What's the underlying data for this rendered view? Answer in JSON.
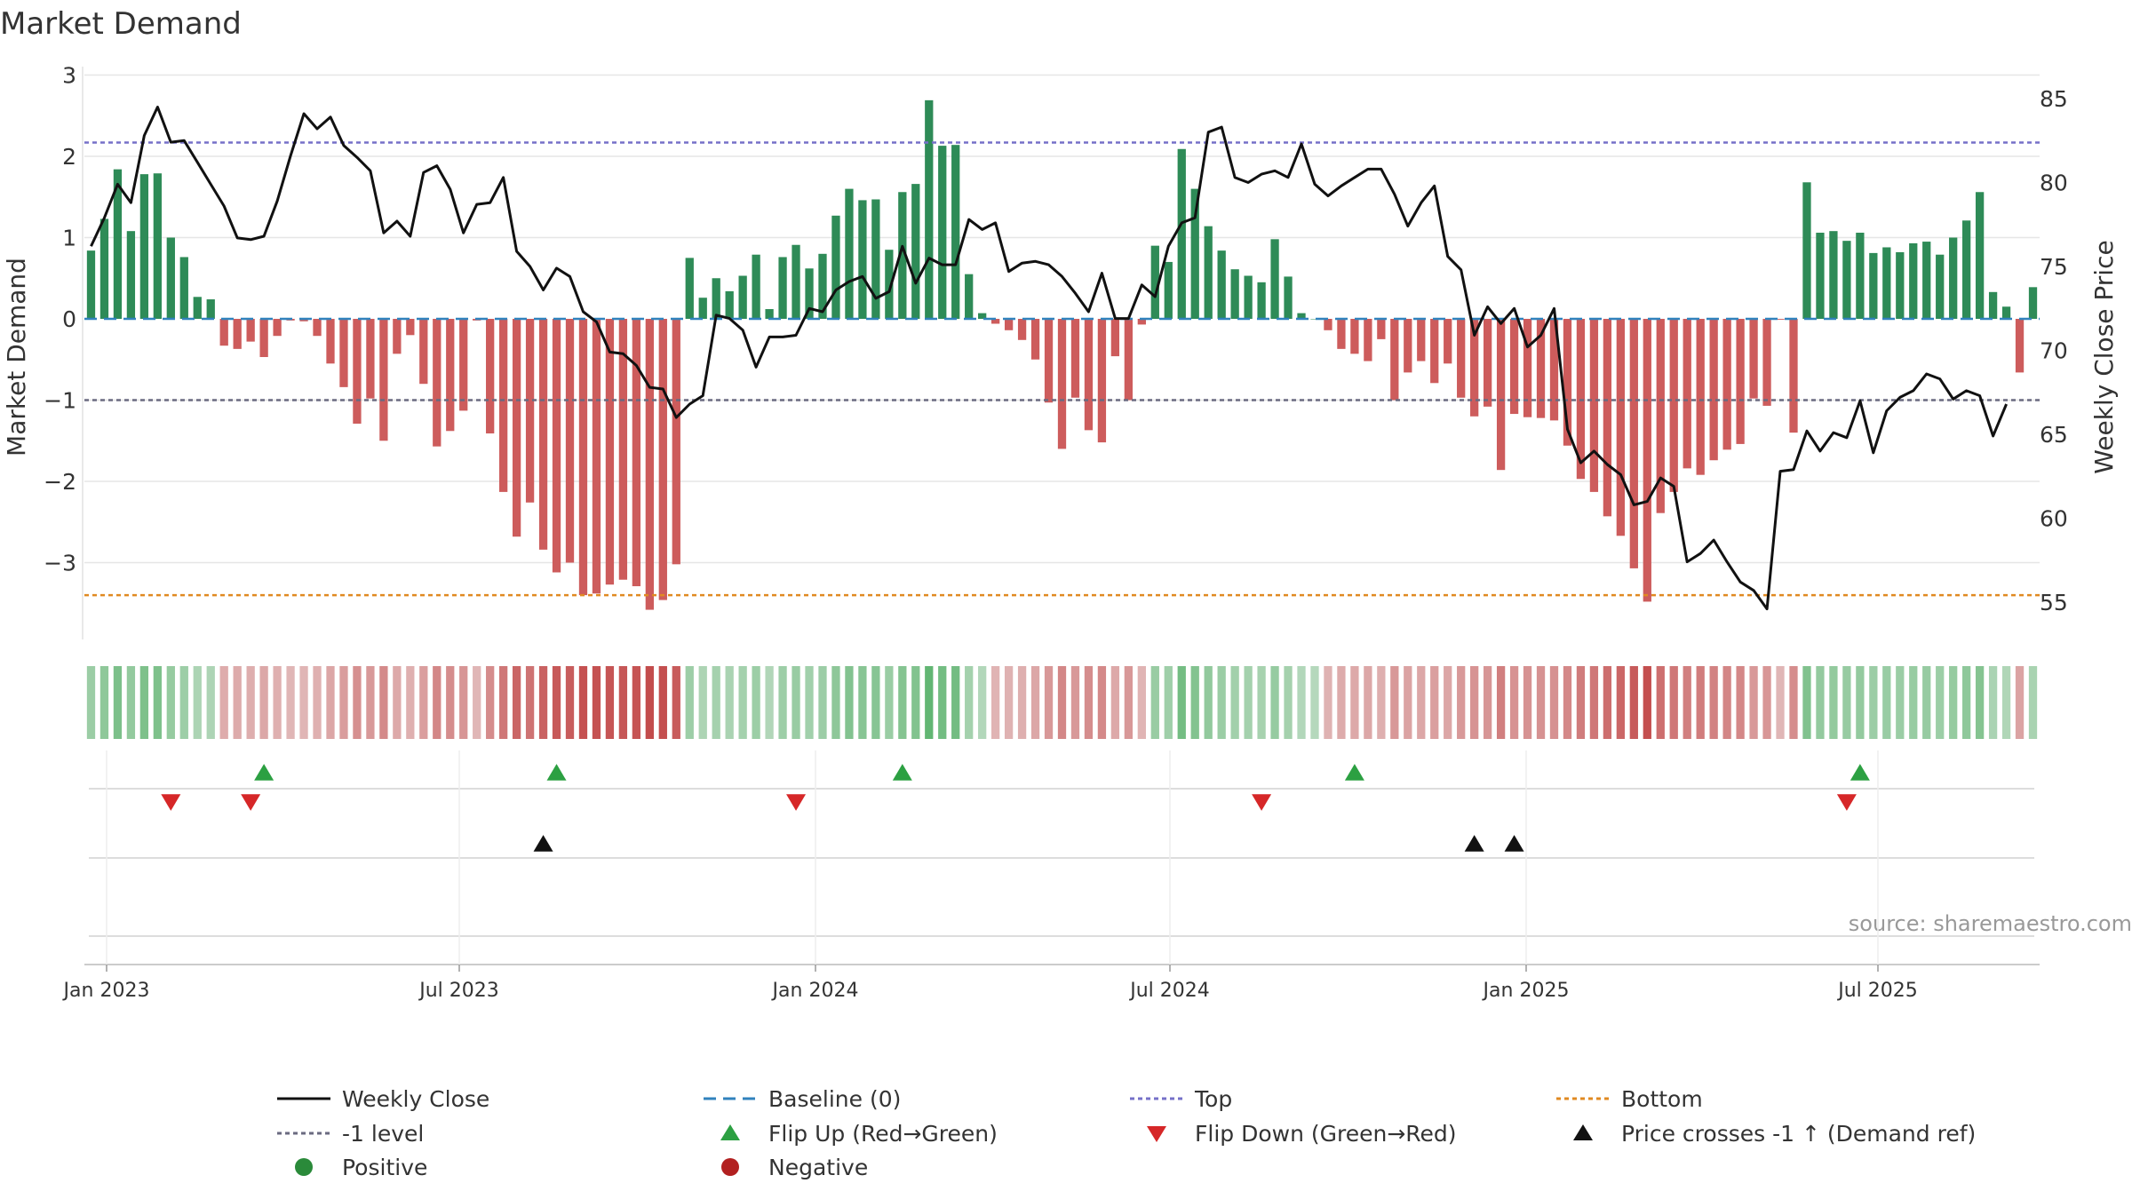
{
  "chart_data": {
    "type": "bar",
    "title": "Market Demand",
    "ylabel": "Market Demand",
    "y2label": "Weekly Close Price",
    "ylim": [
      -3.9,
      3.0
    ],
    "y2lim": [
      52.5,
      87.0
    ],
    "yticks": [
      "3",
      "2",
      "1",
      "0",
      "−1",
      "−2",
      "−3"
    ],
    "y2ticks": [
      "85",
      "80",
      "75",
      "70",
      "65",
      "60",
      "55"
    ],
    "xticks": [
      "Jan 2023",
      "Jul 2023",
      "Jan 2024",
      "Jul 2024",
      "Jan 2025",
      "Jul 2025"
    ],
    "source": "source: sharemaestro.com",
    "reference_lines": {
      "top": 2.17,
      "minus_one": -1.0,
      "bottom": -3.4,
      "baseline": 0
    },
    "series": [
      {
        "name": "Market Demand",
        "values": [
          0.84,
          1.23,
          1.84,
          1.08,
          1.78,
          1.79,
          1.0,
          0.76,
          0.27,
          0.24,
          -0.33,
          -0.37,
          -0.28,
          -0.47,
          -0.21,
          -0.02,
          -0.03,
          -0.21,
          -0.55,
          -0.84,
          -1.29,
          -0.98,
          -1.5,
          -0.43,
          -0.2,
          -0.8,
          -1.57,
          -1.38,
          -1.13,
          -0.02,
          -1.41,
          -2.13,
          -2.68,
          -2.26,
          -2.84,
          -3.12,
          -3.0,
          -3.4,
          -3.38,
          -3.27,
          -3.21,
          -3.29,
          -3.58,
          -3.46,
          -3.02,
          0.75,
          0.26,
          0.5,
          0.34,
          0.53,
          0.79,
          0.12,
          0.76,
          0.91,
          0.62,
          0.8,
          1.27,
          1.6,
          1.46,
          1.47,
          0.85,
          1.56,
          1.66,
          2.69,
          2.13,
          2.14,
          0.55,
          0.07,
          -0.06,
          -0.14,
          -0.26,
          -0.5,
          -1.03,
          -1.6,
          -0.97,
          -1.37,
          -1.52,
          -0.46,
          -1.0,
          -0.07,
          0.9,
          0.7,
          2.09,
          1.6,
          1.14,
          0.84,
          0.61,
          0.53,
          0.45,
          0.98,
          0.52,
          0.07,
          0.0,
          -0.14,
          -0.37,
          -0.43,
          -0.52,
          -0.25,
          -1.0,
          -0.66,
          -0.52,
          -0.79,
          -0.55,
          -0.97,
          -1.2,
          -1.08,
          -1.86,
          -1.17,
          -1.21,
          -1.22,
          -1.25,
          -1.56,
          -1.97,
          -2.13,
          -2.43,
          -2.67,
          -3.07,
          -3.48,
          -2.39,
          -2.13,
          -1.84,
          -1.92,
          -1.74,
          -1.61,
          -1.54,
          -0.98,
          -1.07,
          -0.01,
          -1.4,
          1.68,
          1.06,
          1.08,
          0.96,
          1.06,
          0.81,
          0.88,
          0.82,
          0.93,
          0.95,
          0.79,
          1.0,
          1.21,
          1.56,
          0.33,
          0.15,
          -0.66,
          0.39
        ]
      },
      {
        "name": "Weekly Close",
        "values": [
          76.2,
          77.9,
          79.9,
          78.8,
          82.8,
          84.5,
          82.4,
          82.5,
          81.2,
          79.9,
          78.6,
          76.7,
          76.6,
          76.8,
          78.9,
          81.6,
          84.1,
          83.2,
          83.9,
          82.2,
          81.5,
          80.7,
          77.0,
          77.7,
          76.8,
          80.6,
          81.0,
          79.6,
          77.0,
          78.7,
          78.8,
          80.3,
          75.9,
          75.0,
          73.6,
          74.9,
          74.4,
          72.3,
          71.7,
          69.9,
          69.8,
          69.1,
          67.8,
          67.7,
          66.0,
          66.8,
          67.3,
          72.1,
          71.9,
          71.2,
          69.0,
          70.8,
          70.8,
          70.9,
          72.5,
          72.3,
          73.6,
          74.1,
          74.4,
          73.1,
          73.5,
          76.2,
          74.0,
          75.5,
          75.1,
          75.1,
          77.8,
          77.2,
          77.6,
          74.7,
          75.2,
          75.3,
          75.1,
          74.4,
          73.4,
          72.3,
          74.6,
          71.9,
          71.9,
          73.9,
          73.2,
          76.2,
          77.6,
          77.9,
          83.0,
          83.3,
          80.3,
          80.0,
          80.5,
          80.7,
          80.3,
          82.3,
          79.9,
          79.2,
          79.8,
          80.3,
          80.8,
          80.8,
          79.3,
          77.4,
          78.8,
          79.8,
          75.6,
          74.8,
          70.9,
          72.6,
          71.6,
          72.5,
          70.2,
          70.9,
          72.5,
          65.3,
          63.3,
          64.0,
          63.2,
          62.6,
          60.8,
          61.0,
          62.4,
          61.9,
          57.4,
          57.9,
          58.7,
          57.4,
          56.2,
          55.7,
          54.6,
          62.8,
          62.9,
          65.2,
          64.0,
          65.1,
          64.8,
          67.0,
          63.9,
          66.4,
          67.2,
          67.6,
          68.6,
          68.3,
          67.1,
          67.6,
          67.3,
          64.9,
          66.8
        ]
      }
    ],
    "flip_up_weeks": [
      13,
      35,
      61,
      95,
      133
    ],
    "flip_down_weeks": [
      6,
      12,
      53,
      88,
      132
    ],
    "price_cross_weeks": [
      34,
      104,
      107
    ],
    "legend": [
      {
        "label": "Weekly Close",
        "symbol": "solid-line",
        "color": "#111111"
      },
      {
        "label": "Baseline (0)",
        "symbol": "dashed-line",
        "color": "#3182bd"
      },
      {
        "label": "Top",
        "symbol": "dotted-line",
        "color": "#7670c8"
      },
      {
        "label": "Bottom",
        "symbol": "dotted-line",
        "color": "#e08a22"
      },
      {
        "label": "-1 level",
        "symbol": "dotted-line",
        "color": "#6a6a80"
      },
      {
        "label": "Flip Up (Red→Green)",
        "symbol": "triangle-up",
        "color": "#2ca042"
      },
      {
        "label": "Flip Down (Green→Red)",
        "symbol": "triangle-down",
        "color": "#d62728"
      },
      {
        "label": "Price crosses -1 ↑ (Demand ref)",
        "symbol": "triangle-up",
        "color": "#111111"
      },
      {
        "label": "Positive",
        "symbol": "circle",
        "color": "#2a8a3a"
      },
      {
        "label": "Negative",
        "symbol": "circle",
        "color": "#b22020"
      }
    ],
    "colors": {
      "positive": "#2e8b57",
      "negative": "#cd5c5c",
      "grid": "#e6e6e6"
    }
  }
}
